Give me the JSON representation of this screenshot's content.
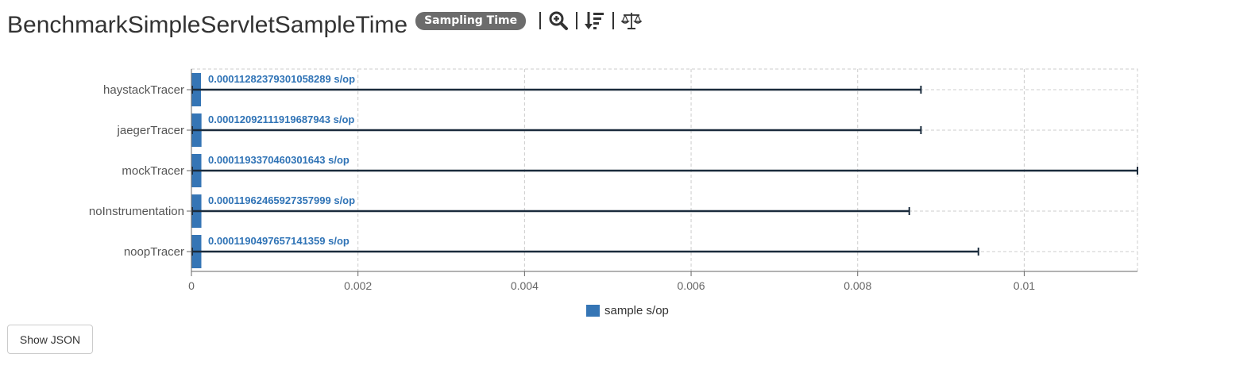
{
  "header": {
    "title": "BenchmarkSimpleServletSampleTime",
    "badge": "Sampling Time",
    "tools": [
      "zoom-icon",
      "sort-icon",
      "balance-icon"
    ]
  },
  "button": {
    "show_json": "Show JSON"
  },
  "colors": {
    "bar": "#3575b5",
    "error": "#1a2b3c",
    "label": "#2f73b6"
  },
  "chart_data": {
    "type": "bar",
    "orientation": "horizontal",
    "categories": [
      "haystackTracer",
      "jaegerTracer",
      "mockTracer",
      "noInstrumentation",
      "noopTracer"
    ],
    "series": [
      {
        "name": "sample s/op",
        "values": [
          0.0001128237930105829,
          0.0001209211191968794,
          0.0001193370460301643,
          0.00011962465927358,
          0.0001190497657141359
        ],
        "labels": [
          "0.00011282379301058289 s/op",
          "0.00012092111919687943 s/op",
          "0.0001193370460301643 s/op",
          "0.00011962465927357999 s/op",
          "0.0001190497657141359 s/op"
        ],
        "error_low": [
          9.6e-06,
          9.6e-06,
          9.6e-06,
          9.6e-06,
          9.6e-06
        ],
        "error_high": [
          0.00876,
          0.00876,
          0.01136,
          0.00862,
          0.00945
        ]
      }
    ],
    "xlim": [
      0,
      0.01136
    ],
    "xticks": [
      {
        "value": 0,
        "label": "0"
      },
      {
        "value": 0.002,
        "label": "0.002"
      },
      {
        "value": 0.004,
        "label": "0.004"
      },
      {
        "value": 0.006,
        "label": "0.006"
      },
      {
        "value": 0.008,
        "label": "0.008"
      },
      {
        "value": 0.01,
        "label": "0.01"
      }
    ],
    "grid": true,
    "legend": "bottom-center"
  }
}
